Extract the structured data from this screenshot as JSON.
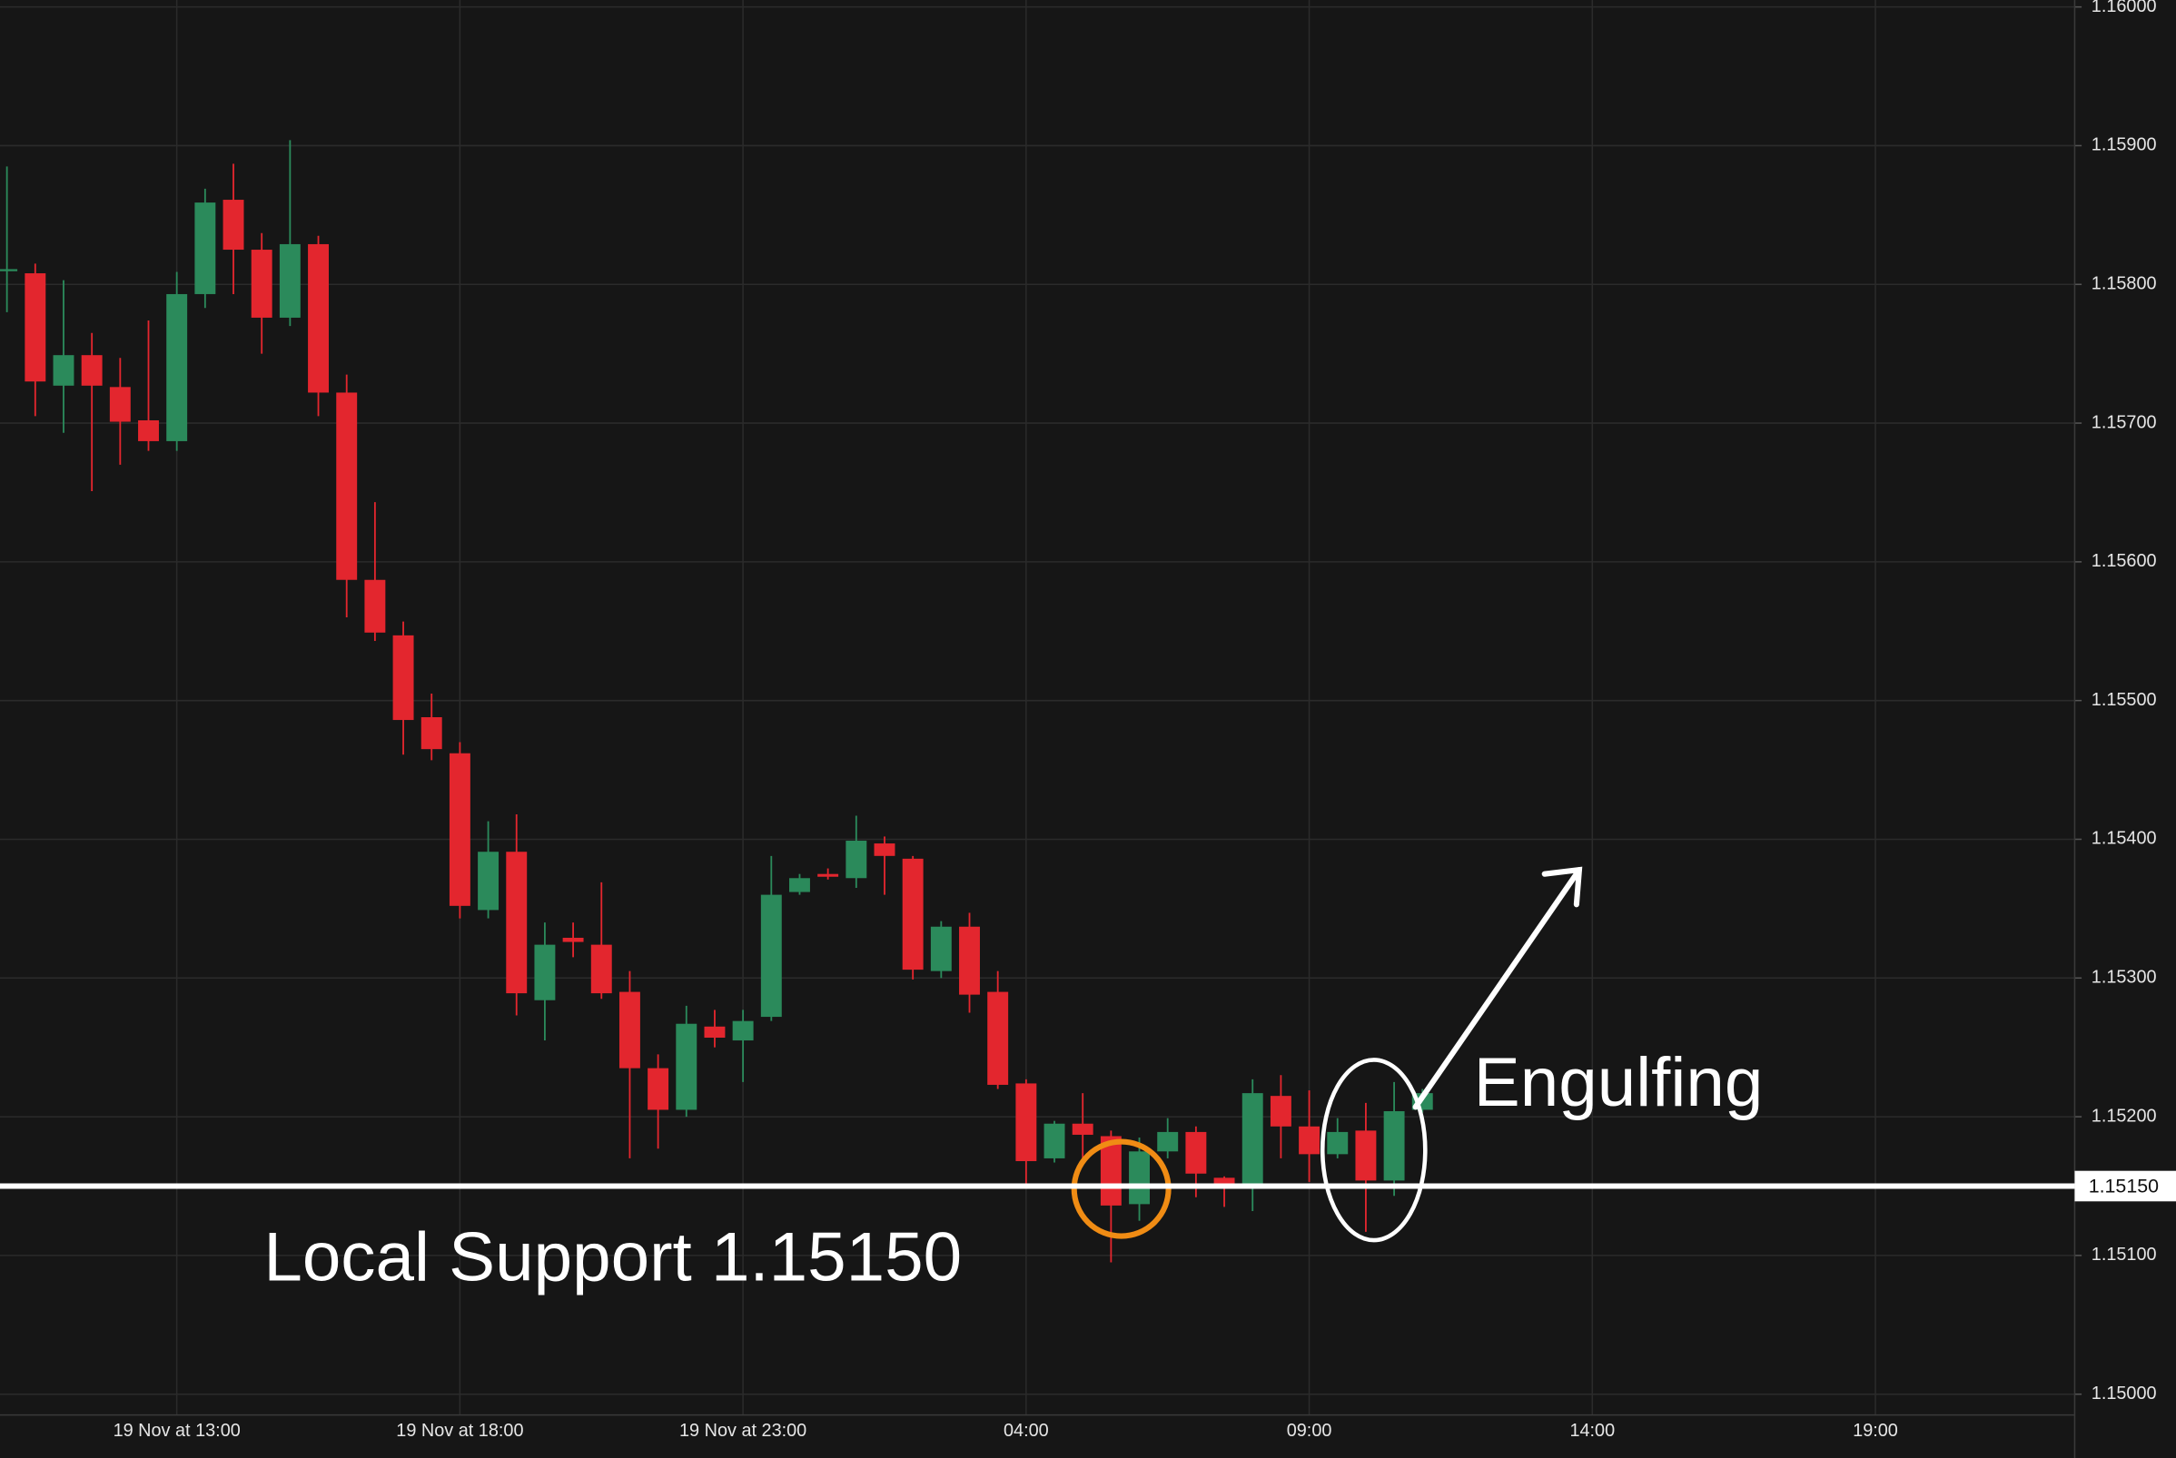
{
  "chart_data": {
    "type": "candlestick",
    "categories": [
      null,
      null,
      null,
      null,
      null,
      null,
      "19 Nov at 13:00",
      null,
      null,
      null,
      null,
      null,
      null,
      null,
      null,
      null,
      "19 Nov at 18:00",
      null,
      null,
      null,
      null,
      null,
      null,
      null,
      null,
      null,
      "19 Nov at 23:00",
      null,
      null,
      null,
      null,
      null,
      null,
      null,
      null,
      null,
      "04:00",
      null,
      null,
      null,
      null,
      null,
      null,
      null,
      null,
      null,
      "09:00",
      null,
      null,
      null,
      null,
      null,
      null,
      null,
      null,
      null,
      "14:00",
      null,
      null,
      null,
      null,
      null,
      null,
      null,
      null,
      null,
      "19:00",
      null,
      null,
      null,
      null,
      null,
      null
    ],
    "open": [
      1.1581,
      1.15808,
      1.15727,
      1.15749,
      1.15726,
      1.15702,
      1.15687,
      1.15793,
      1.15861,
      1.15825,
      1.15776,
      1.15829,
      1.15722,
      1.15587,
      1.15547,
      1.15488,
      1.15462,
      1.15349,
      1.15391,
      1.15284,
      1.15329,
      1.15324,
      1.1529,
      1.15235,
      1.15205,
      1.15265,
      1.15255,
      1.15272,
      1.15362,
      1.15375,
      1.15372,
      1.15397,
      1.15386,
      1.15305,
      1.15337,
      1.1529,
      1.15224,
      1.1517,
      1.15195,
      1.15186,
      1.15137,
      1.15175,
      1.15189,
      1.15156,
      1.1515,
      1.15215,
      1.15193,
      1.15173,
      1.1519,
      1.15154,
      1.15205,
      null,
      null,
      null,
      null,
      null,
      null,
      null,
      null,
      null,
      null,
      null,
      null,
      null,
      null,
      null,
      null,
      null,
      null,
      null,
      null,
      null,
      null
    ],
    "high": [
      1.15885,
      1.15815,
      1.15803,
      1.15765,
      1.15747,
      1.15774,
      1.15809,
      1.15869,
      1.15887,
      1.15837,
      1.15904,
      1.15835,
      1.15735,
      1.15643,
      1.15557,
      1.15505,
      1.1547,
      1.15413,
      1.15418,
      1.1534,
      1.1534,
      1.15369,
      1.15305,
      1.15245,
      1.1528,
      1.15277,
      1.15277,
      1.15388,
      1.15375,
      1.15379,
      1.15417,
      1.15402,
      1.15388,
      1.15341,
      1.15347,
      1.15305,
      1.15227,
      1.15197,
      1.15217,
      1.1519,
      1.15185,
      1.15199,
      1.15193,
      1.15157,
      1.15227,
      1.1523,
      1.15219,
      1.15199,
      1.1521,
      1.15225,
      1.1522,
      null,
      null,
      null,
      null,
      null,
      null,
      null,
      null,
      null,
      null,
      null,
      null,
      null,
      null,
      null,
      null,
      null,
      null,
      null,
      null,
      null,
      null
    ],
    "low": [
      1.1578,
      1.15705,
      1.15693,
      1.15651,
      1.1567,
      1.1568,
      1.1568,
      1.15783,
      1.15793,
      1.1575,
      1.1577,
      1.15705,
      1.1556,
      1.15543,
      1.15461,
      1.15457,
      1.15343,
      1.15343,
      1.15273,
      1.15255,
      1.15315,
      1.15285,
      1.1517,
      1.15177,
      1.152,
      1.1525,
      1.15225,
      1.15269,
      1.1536,
      1.15371,
      1.15365,
      1.1536,
      1.15299,
      1.153,
      1.15275,
      1.1522,
      1.1515,
      1.15167,
      1.1517,
      1.15095,
      1.15125,
      1.1517,
      1.15142,
      1.15135,
      1.15132,
      1.1517,
      1.15153,
      1.1517,
      1.15117,
      1.15143,
      1.15203,
      null,
      null,
      null,
      null,
      null,
      null,
      null,
      null,
      null,
      null,
      null,
      null,
      null,
      null,
      null,
      null,
      null,
      null,
      null,
      null,
      null,
      null
    ],
    "close": [
      1.15811,
      1.1573,
      1.15749,
      1.15727,
      1.15701,
      1.15687,
      1.15793,
      1.15859,
      1.15825,
      1.15776,
      1.15829,
      1.15722,
      1.15587,
      1.15549,
      1.15486,
      1.15465,
      1.15352,
      1.15391,
      1.15289,
      1.15324,
      1.15326,
      1.15289,
      1.15235,
      1.15205,
      1.15267,
      1.15257,
      1.15269,
      1.1536,
      1.15372,
      1.15373,
      1.15399,
      1.15388,
      1.15306,
      1.15337,
      1.15288,
      1.15223,
      1.15168,
      1.15195,
      1.15187,
      1.15136,
      1.15175,
      1.15189,
      1.15159,
      1.1515,
      1.15217,
      1.15193,
      1.15173,
      1.15189,
      1.15154,
      1.15204,
      1.15217,
      null,
      null,
      null,
      null,
      null,
      null,
      null,
      null,
      null,
      null,
      null,
      null,
      null,
      null,
      null,
      null,
      null,
      null,
      null,
      null,
      null,
      null
    ],
    "up_color": "#2b8a5b",
    "down_color": "#e3262e",
    "ylim": [
      1.15,
      1.16
    ],
    "yticks": [
      {
        "value": 1.15,
        "label": "1.15000"
      },
      {
        "value": 1.151,
        "label": "1.15100"
      },
      {
        "value": 1.152,
        "label": "1.15200"
      },
      {
        "value": 1.153,
        "label": "1.15300"
      },
      {
        "value": 1.154,
        "label": "1.15400"
      },
      {
        "value": 1.155,
        "label": "1.15500"
      },
      {
        "value": 1.156,
        "label": "1.15600"
      },
      {
        "value": 1.157,
        "label": "1.15700"
      },
      {
        "value": 1.158,
        "label": "1.15800"
      },
      {
        "value": 1.159,
        "label": "1.15900"
      },
      {
        "value": 1.16,
        "label": "1.16000"
      }
    ],
    "grid": true,
    "support": {
      "value": 1.1515,
      "label": "1.15150"
    },
    "annotations": [
      "Local Support 1.15150",
      "Engulfing"
    ]
  }
}
